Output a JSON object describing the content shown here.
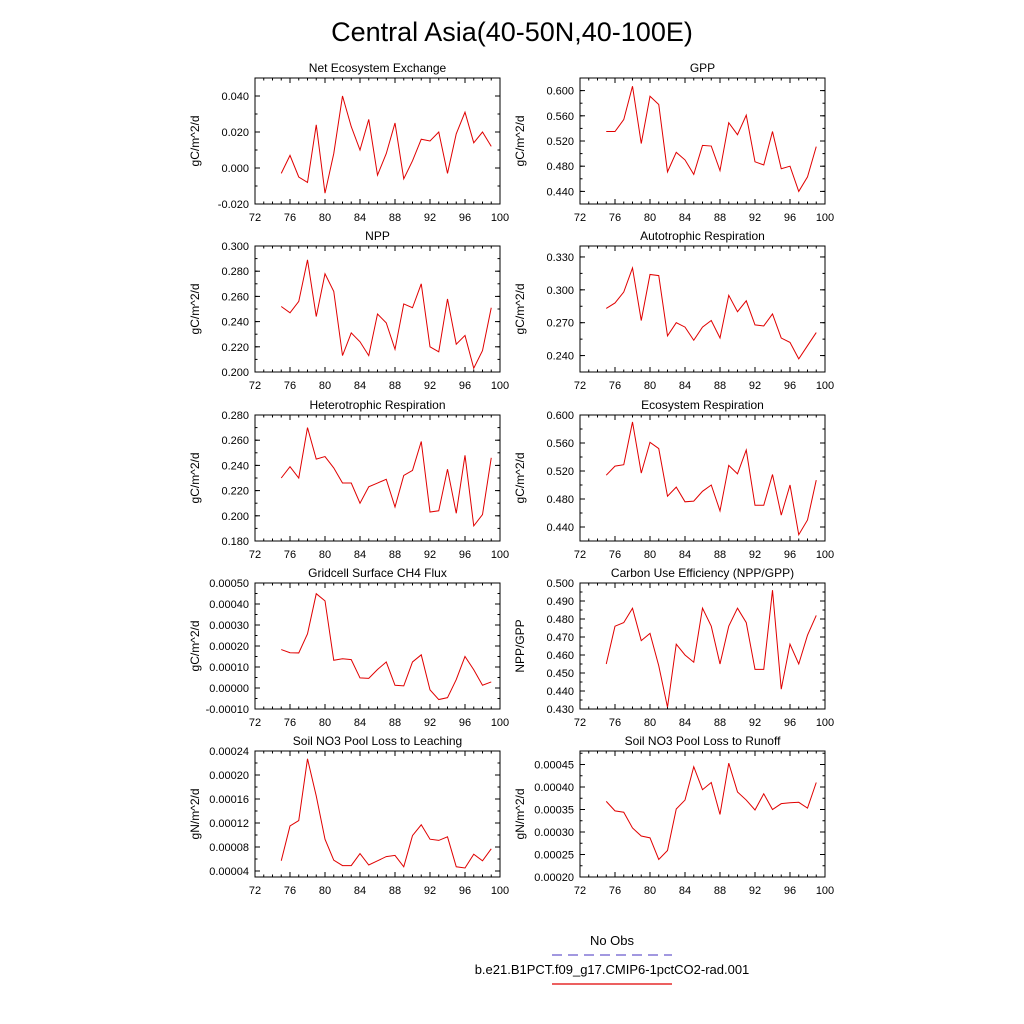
{
  "figure": {
    "title": "Central Asia(40-50N,40-100E)",
    "legend": [
      {
        "label": "No Obs",
        "color": "#6a5acd",
        "style": "dashed"
      },
      {
        "label": "b.e21.B1PCT.f09_g17.CMIP6-1pctCO2-rad.001",
        "color": "#e00000",
        "style": "solid"
      }
    ]
  },
  "chart_data": [
    {
      "type": "line",
      "title": "Net Ecosystem Exchange",
      "ylabel": "gC/m^2/d",
      "xlim": [
        72,
        100
      ],
      "xticks": [
        "72",
        "76",
        "80",
        "84",
        "88",
        "92",
        "96",
        "100"
      ],
      "ylim": [
        -0.02,
        0.05
      ],
      "yticks": [
        "-0.020",
        "0.000",
        "0.020",
        "0.040"
      ],
      "series": [
        {
          "color": "#e00000",
          "x": [
            75,
            76,
            77,
            78,
            79,
            80,
            81,
            82,
            83,
            84,
            85,
            86,
            87,
            88,
            89,
            90,
            91,
            92,
            93,
            94,
            95,
            96,
            97,
            98,
            99
          ],
          "y": [
            -0.003,
            0.007,
            -0.005,
            -0.008,
            0.024,
            -0.014,
            0.008,
            0.04,
            0.023,
            0.01,
            0.027,
            -0.004,
            0.008,
            0.025,
            -0.006,
            0.004,
            0.016,
            0.015,
            0.02,
            -0.003,
            0.019,
            0.031,
            0.014,
            0.02,
            0.012
          ]
        }
      ]
    },
    {
      "type": "line",
      "title": "GPP",
      "ylabel": "gC/m^2/d",
      "xlim": [
        72,
        100
      ],
      "xticks": [
        "72",
        "76",
        "80",
        "84",
        "88",
        "92",
        "96",
        "100"
      ],
      "ylim": [
        0.42,
        0.62
      ],
      "yticks": [
        "0.440",
        "0.480",
        "0.520",
        "0.560",
        "0.600"
      ],
      "series": [
        {
          "color": "#e00000",
          "x": [
            75,
            76,
            77,
            78,
            79,
            80,
            81,
            82,
            83,
            84,
            85,
            86,
            87,
            88,
            89,
            90,
            91,
            92,
            93,
            94,
            95,
            96,
            97,
            98,
            99
          ],
          "y": [
            0.535,
            0.535,
            0.554,
            0.607,
            0.516,
            0.591,
            0.578,
            0.471,
            0.502,
            0.49,
            0.467,
            0.513,
            0.512,
            0.473,
            0.549,
            0.53,
            0.561,
            0.487,
            0.482,
            0.535,
            0.476,
            0.48,
            0.44,
            0.463,
            0.511
          ]
        }
      ]
    },
    {
      "type": "line",
      "title": "NPP",
      "ylabel": "gC/m^2/d",
      "xlim": [
        72,
        100
      ],
      "xticks": [
        "72",
        "76",
        "80",
        "84",
        "88",
        "92",
        "96",
        "100"
      ],
      "ylim": [
        0.2,
        0.3
      ],
      "yticks": [
        "0.200",
        "0.220",
        "0.240",
        "0.260",
        "0.280",
        "0.300"
      ],
      "series": [
        {
          "color": "#e00000",
          "x": [
            75,
            76,
            77,
            78,
            79,
            80,
            81,
            82,
            83,
            84,
            85,
            86,
            87,
            88,
            89,
            90,
            91,
            92,
            93,
            94,
            95,
            96,
            97,
            98,
            99
          ],
          "y": [
            0.252,
            0.247,
            0.256,
            0.289,
            0.244,
            0.278,
            0.264,
            0.213,
            0.231,
            0.224,
            0.213,
            0.246,
            0.239,
            0.218,
            0.254,
            0.251,
            0.27,
            0.22,
            0.216,
            0.258,
            0.222,
            0.229,
            0.203,
            0.217,
            0.251
          ]
        }
      ]
    },
    {
      "type": "line",
      "title": "Autotrophic Respiration",
      "ylabel": "gC/m^2/d",
      "xlim": [
        72,
        100
      ],
      "xticks": [
        "72",
        "76",
        "80",
        "84",
        "88",
        "92",
        "96",
        "100"
      ],
      "ylim": [
        0.225,
        0.34
      ],
      "yticks": [
        "0.240",
        "0.270",
        "0.300",
        "0.330"
      ],
      "series": [
        {
          "color": "#e00000",
          "x": [
            75,
            76,
            77,
            78,
            79,
            80,
            81,
            82,
            83,
            84,
            85,
            86,
            87,
            88,
            89,
            90,
            91,
            92,
            93,
            94,
            95,
            96,
            97,
            98,
            99
          ],
          "y": [
            0.283,
            0.288,
            0.298,
            0.32,
            0.272,
            0.314,
            0.313,
            0.258,
            0.27,
            0.266,
            0.254,
            0.266,
            0.272,
            0.256,
            0.295,
            0.28,
            0.29,
            0.268,
            0.267,
            0.278,
            0.256,
            0.252,
            0.237,
            0.249,
            0.261
          ]
        }
      ]
    },
    {
      "type": "line",
      "title": "Heterotrophic Respiration",
      "ylabel": "gC/m^2/d",
      "xlim": [
        72,
        100
      ],
      "xticks": [
        "72",
        "76",
        "80",
        "84",
        "88",
        "92",
        "96",
        "100"
      ],
      "ylim": [
        0.18,
        0.28
      ],
      "yticks": [
        "0.180",
        "0.200",
        "0.220",
        "0.240",
        "0.260",
        "0.280"
      ],
      "series": [
        {
          "color": "#e00000",
          "x": [
            75,
            76,
            77,
            78,
            79,
            80,
            81,
            82,
            83,
            84,
            85,
            86,
            87,
            88,
            89,
            90,
            91,
            92,
            93,
            94,
            95,
            96,
            97,
            98,
            99
          ],
          "y": [
            0.23,
            0.239,
            0.23,
            0.27,
            0.245,
            0.247,
            0.238,
            0.226,
            0.226,
            0.21,
            0.223,
            0.226,
            0.229,
            0.207,
            0.232,
            0.236,
            0.259,
            0.203,
            0.204,
            0.237,
            0.202,
            0.248,
            0.192,
            0.201,
            0.246
          ]
        }
      ]
    },
    {
      "type": "line",
      "title": "Ecosystem Respiration",
      "ylabel": "gC/m^2/d",
      "xlim": [
        72,
        100
      ],
      "xticks": [
        "72",
        "76",
        "80",
        "84",
        "88",
        "92",
        "96",
        "100"
      ],
      "ylim": [
        0.42,
        0.6
      ],
      "yticks": [
        "0.440",
        "0.480",
        "0.520",
        "0.560",
        "0.600"
      ],
      "series": [
        {
          "color": "#e00000",
          "x": [
            75,
            76,
            77,
            78,
            79,
            80,
            81,
            82,
            83,
            84,
            85,
            86,
            87,
            88,
            89,
            90,
            91,
            92,
            93,
            94,
            95,
            96,
            97,
            98,
            99
          ],
          "y": [
            0.514,
            0.527,
            0.529,
            0.59,
            0.517,
            0.561,
            0.552,
            0.484,
            0.497,
            0.476,
            0.477,
            0.491,
            0.5,
            0.463,
            0.528,
            0.516,
            0.55,
            0.471,
            0.471,
            0.515,
            0.457,
            0.5,
            0.429,
            0.45,
            0.507
          ]
        }
      ]
    },
    {
      "type": "line",
      "title": "Gridcell Surface CH4 Flux",
      "ylabel": "gC/m^2/d",
      "xlim": [
        72,
        100
      ],
      "xticks": [
        "72",
        "76",
        "80",
        "84",
        "88",
        "92",
        "96",
        "100"
      ],
      "ylim": [
        -0.0001,
        0.0005
      ],
      "yticks": [
        "-0.00010",
        "0.00000",
        "0.00010",
        "0.00020",
        "0.00030",
        "0.00040",
        "0.00050"
      ],
      "series": [
        {
          "color": "#e00000",
          "x": [
            75,
            76,
            77,
            78,
            79,
            80,
            81,
            82,
            83,
            84,
            85,
            86,
            87,
            88,
            89,
            90,
            91,
            92,
            93,
            94,
            95,
            96,
            97,
            98,
            99
          ],
          "y": [
            0.000183,
            0.000168,
            0.000167,
            0.000258,
            0.000449,
            0.000415,
            0.000132,
            0.000139,
            0.000135,
            4.8e-05,
            4.6e-05,
            8.8e-05,
            0.000124,
            1.3e-05,
            1e-05,
            0.000124,
            0.000158,
            -9e-06,
            -5.5e-05,
            -4.6e-05,
            4e-05,
            0.00015,
            8.7e-05,
            1.3e-05,
            2.9e-05
          ]
        }
      ]
    },
    {
      "type": "line",
      "title": "Carbon Use Efficiency (NPP/GPP)",
      "ylabel": "NPP/GPP",
      "xlim": [
        72,
        100
      ],
      "xticks": [
        "72",
        "76",
        "80",
        "84",
        "88",
        "92",
        "96",
        "100"
      ],
      "ylim": [
        0.43,
        0.5
      ],
      "yticks": [
        "0.430",
        "0.440",
        "0.450",
        "0.460",
        "0.470",
        "0.480",
        "0.490",
        "0.500"
      ],
      "series": [
        {
          "color": "#e00000",
          "x": [
            75,
            76,
            77,
            78,
            79,
            80,
            81,
            82,
            83,
            84,
            85,
            86,
            87,
            88,
            89,
            90,
            91,
            92,
            93,
            94,
            95,
            96,
            97,
            98,
            99
          ],
          "y": [
            0.455,
            0.476,
            0.478,
            0.486,
            0.468,
            0.472,
            0.454,
            0.431,
            0.466,
            0.46,
            0.456,
            0.486,
            0.476,
            0.455,
            0.476,
            0.486,
            0.478,
            0.452,
            0.452,
            0.496,
            0.441,
            0.466,
            0.455,
            0.471,
            0.482
          ]
        }
      ]
    },
    {
      "type": "line",
      "title": "Soil NO3 Pool Loss to Leaching",
      "ylabel": "gN/m^2/d",
      "xlim": [
        72,
        100
      ],
      "xticks": [
        "72",
        "76",
        "80",
        "84",
        "88",
        "92",
        "96",
        "100"
      ],
      "ylim": [
        3e-05,
        0.00024
      ],
      "yticks": [
        "0.00004",
        "0.00008",
        "0.00012",
        "0.00016",
        "0.00020",
        "0.00024"
      ],
      "series": [
        {
          "color": "#e00000",
          "x": [
            75,
            76,
            77,
            78,
            79,
            80,
            81,
            82,
            83,
            84,
            85,
            86,
            87,
            88,
            89,
            90,
            91,
            92,
            93,
            94,
            95,
            96,
            97,
            98,
            99
          ],
          "y": [
            5.7e-05,
            0.000115,
            0.000124,
            0.000227,
            0.000165,
            9.3e-05,
            5.8e-05,
            4.9e-05,
            4.9e-05,
            6.9e-05,
            5e-05,
            5.7e-05,
            6.4e-05,
            6.6e-05,
            4.7e-05,
            9.9e-05,
            0.000117,
            9.3e-05,
            9.1e-05,
            9.7e-05,
            4.7e-05,
            4.5e-05,
            6.8e-05,
            5.7e-05,
            7.7e-05
          ]
        }
      ]
    },
    {
      "type": "line",
      "title": "Soil NO3 Pool Loss to Runoff",
      "ylabel": "gN/m^2/d",
      "xlim": [
        72,
        100
      ],
      "xticks": [
        "72",
        "76",
        "80",
        "84",
        "88",
        "92",
        "96",
        "100"
      ],
      "ylim": [
        0.0002,
        0.00048
      ],
      "yticks": [
        "0.00020",
        "0.00025",
        "0.00030",
        "0.00035",
        "0.00040",
        "0.00045"
      ],
      "series": [
        {
          "color": "#e00000",
          "x": [
            75,
            76,
            77,
            78,
            79,
            80,
            81,
            82,
            83,
            84,
            85,
            86,
            87,
            88,
            89,
            90,
            91,
            92,
            93,
            94,
            95,
            96,
            97,
            98,
            99
          ],
          "y": [
            0.000368,
            0.000347,
            0.000344,
            0.000309,
            0.000291,
            0.000287,
            0.000239,
            0.000259,
            0.000351,
            0.000371,
            0.000445,
            0.000394,
            0.00041,
            0.000339,
            0.000453,
            0.000389,
            0.000371,
            0.000349,
            0.000385,
            0.00035,
            0.000363,
            0.000365,
            0.000366,
            0.000353,
            0.00041
          ]
        }
      ]
    }
  ]
}
